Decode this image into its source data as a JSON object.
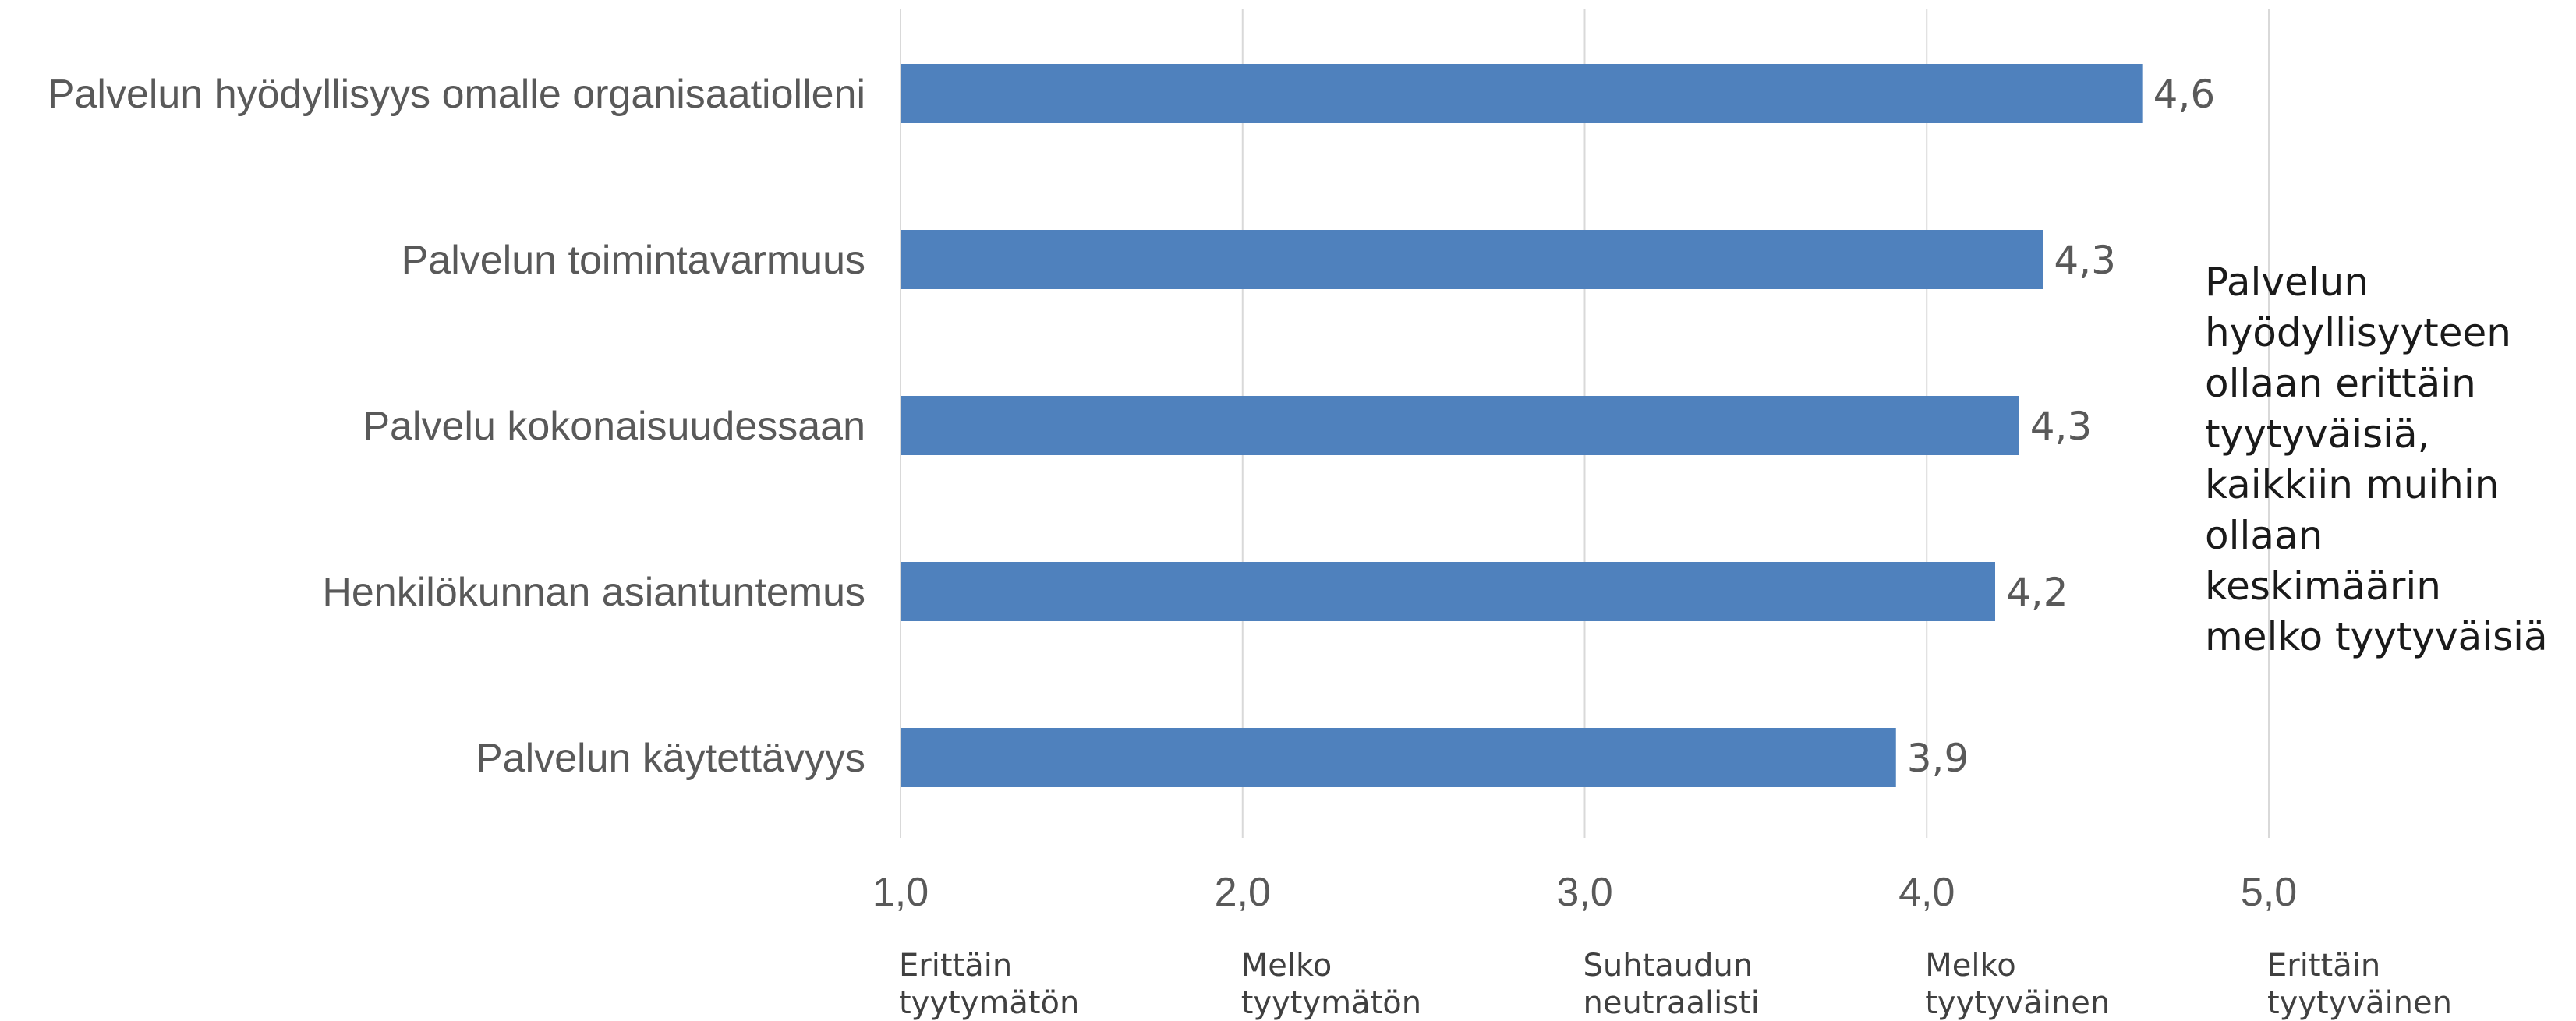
{
  "chart_data": {
    "type": "bar",
    "orientation": "horizontal",
    "categories": [
      "Palvelun hyödyllisyys omalle organisaatiolleni",
      "Palvelun toimintavarmuus",
      "Palvelu kokonaisuudessaan",
      "Henkilökunnan asiantuntemus",
      "Palvelun käytettävyys"
    ],
    "values": [
      4.63,
      4.34,
      4.27,
      4.2,
      3.91
    ],
    "value_labels": [
      "4,6",
      "4,3",
      "4,3",
      "4,2",
      "3,9"
    ],
    "xlim": [
      1.0,
      5.0
    ],
    "x_ticks": [
      1.0,
      2.0,
      3.0,
      4.0,
      5.0
    ],
    "x_tick_labels": [
      "1,0",
      "2,0",
      "3,0",
      "4,0",
      "5,0"
    ],
    "scale_descriptions": [
      [
        "Erittäin",
        "tyytymätön"
      ],
      [
        "Melko",
        "tyytymätön"
      ],
      [
        "Suhtaudun",
        "neutraalisti"
      ],
      [
        "Melko",
        "tyytyväinen"
      ],
      [
        "Erittäin",
        "tyytyväinen"
      ]
    ],
    "grid": "vertical",
    "bar_color": "#4f81bd",
    "grid_color": "#d9d9d9",
    "annotation_lines": [
      "Palvelun",
      "hyödyllisyyteen",
      "ollaan erittäin",
      "tyytyväisiä,",
      "kaikkiin muihin",
      "ollaan",
      "keskimäärin",
      "melko tyytyväisiä"
    ]
  }
}
